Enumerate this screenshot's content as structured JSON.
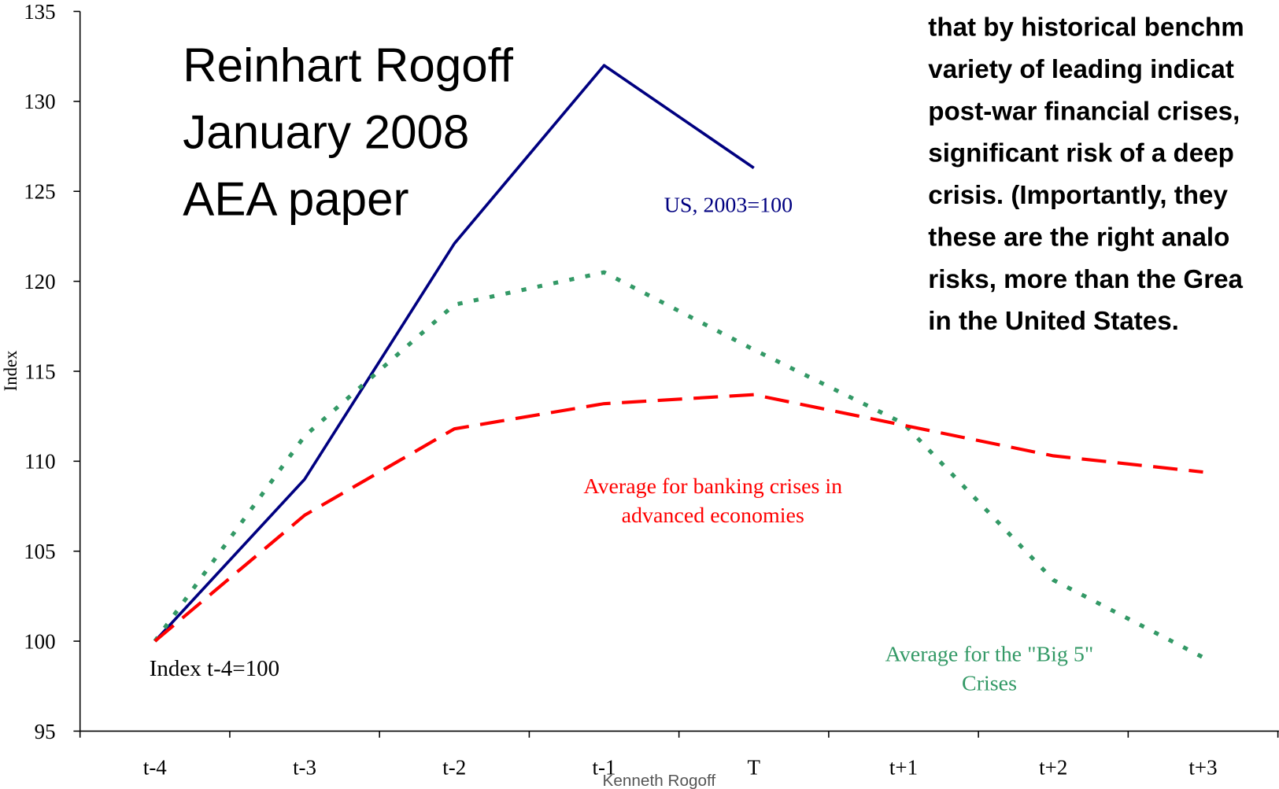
{
  "chart_data": {
    "type": "line",
    "title_lines": [
      "Reinhart Rogoff",
      "January 2008",
      "AEA paper"
    ],
    "ylabel": "Index",
    "categories": [
      "t-4",
      "t-3",
      "t-2",
      "t-1",
      "T",
      "t+1",
      "t+2",
      "t+3"
    ],
    "ylim": [
      95,
      135
    ],
    "yticks": [
      95,
      100,
      105,
      110,
      115,
      120,
      125,
      130,
      135
    ],
    "series": [
      {
        "name": "US, 2003=100",
        "color": "#000080",
        "style": "solid",
        "values": [
          100,
          109,
          122.1,
          132,
          126.3,
          null,
          null,
          null
        ]
      },
      {
        "name": "Average for the \"Big 5\" Crises",
        "name_lines": [
          "Average for the \"Big 5\"",
          "Crises"
        ],
        "color": "#339966",
        "style": "dotted",
        "values": [
          100,
          111.4,
          118.7,
          120.5,
          116.2,
          112.1,
          103.4,
          99.1
        ]
      },
      {
        "name": "Average for banking crises in advanced economies",
        "name_lines": [
          "Average for banking crises in",
          "advanced economies"
        ],
        "color": "#ff0000",
        "style": "dashed",
        "values": [
          100,
          107,
          111.8,
          113.2,
          113.7,
          112,
          110.3,
          109.4
        ]
      }
    ],
    "annotation": "Index t-4=100",
    "quote_lines": [
      "that by historical benchm",
      "variety of leading indicat",
      "post-war financial crises,",
      "significant risk of a deep",
      "crisis. (Importantly, they",
      "these are the right analo",
      "risks, more than the Grea",
      "in the United States."
    ],
    "footer": "Kenneth Rogoff"
  }
}
